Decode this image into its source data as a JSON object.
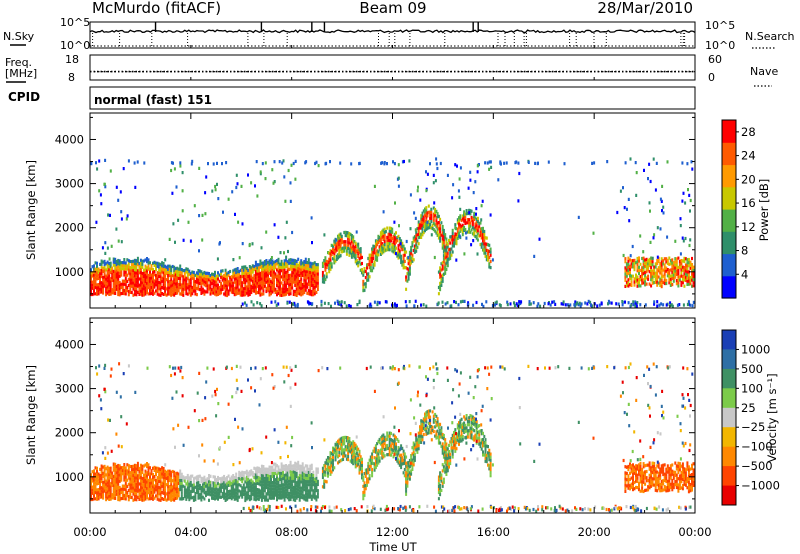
{
  "header": {
    "station": "McMurdo (fitACF)",
    "beam": "Beam 09",
    "date": "28/Mar/2010"
  },
  "noise_panel": {
    "left_label": "N.Sky",
    "left_ticks": [
      "10^5",
      "10^0"
    ],
    "right_label": "N.Search",
    "right_ticks": [
      "10^5",
      "10^0"
    ]
  },
  "freq_panel": {
    "left_label_line1": "Freq.",
    "left_label_line2": "[MHz]",
    "left_ticks": [
      "18",
      "8"
    ],
    "right_label": "Nave",
    "right_ticks": [
      "60",
      "0"
    ],
    "freq_mhz": 11.2,
    "nave": 19
  },
  "cpid": {
    "label": "CPID",
    "value": "normal (fast) 151"
  },
  "chart_data": [
    {
      "type": "heatmap",
      "name": "power",
      "ylabel": "Slant Range [km]",
      "xlabel": "",
      "yticks": [
        "1000",
        "2000",
        "3000",
        "4000"
      ],
      "ylim": [
        180,
        4600
      ],
      "xlim_hours": [
        0,
        24
      ],
      "colorbar_label": "Power [dB]",
      "colorbar_ticks": [
        "4",
        "8",
        "12",
        "16",
        "20",
        "24",
        "28"
      ],
      "colorbar_range": [
        0,
        30
      ],
      "colorbar_colors": [
        "#0000ff",
        "#1e5fcf",
        "#2f8f6a",
        "#52b046",
        "#c8c800",
        "#ff9a00",
        "#ff5a00",
        "#ff0000"
      ]
    },
    {
      "type": "heatmap",
      "name": "velocity",
      "ylabel": "Slant Range [km]",
      "xlabel": "Time UT",
      "xticks": [
        "00:00",
        "04:00",
        "08:00",
        "12:00",
        "16:00",
        "20:00",
        "00:00"
      ],
      "yticks": [
        "1000",
        "2000",
        "3000",
        "4000"
      ],
      "ylim": [
        180,
        4600
      ],
      "xlim_hours": [
        0,
        24
      ],
      "colorbar_label": "Velocity [m s⁻¹]",
      "colorbar_ticks": [
        "1000",
        "500",
        "100",
        "25",
        "−25",
        "−100",
        "−500",
        "−1000"
      ],
      "colorbar_colors": [
        "#1a3fb5",
        "#2e6fa5",
        "#3f9064",
        "#7ccb4a",
        "#c8c8c8",
        "#f2b600",
        "#ff8800",
        "#ff4400",
        "#e80000"
      ]
    }
  ]
}
